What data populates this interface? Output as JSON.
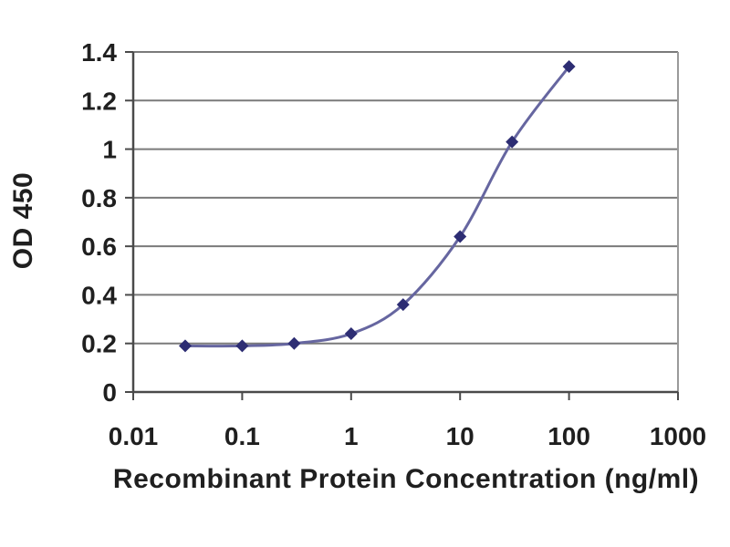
{
  "chart_data": {
    "type": "line",
    "title": "",
    "xlabel": "Recombinant Protein Concentration (ng/ml)",
    "ylabel": "OD 450",
    "x_scale": "log",
    "xlim": [
      0.01,
      1000
    ],
    "ylim": [
      0,
      1.4
    ],
    "x_tick_labels": [
      "0.01",
      "0.1",
      "1",
      "10",
      "100",
      "1000"
    ],
    "y_tick_labels": [
      "0",
      "0.2",
      "0.4",
      "0.6",
      "0.8",
      "1",
      "1.2",
      "1.4"
    ],
    "grid": "horizontal",
    "legend_position": "none",
    "series": [
      {
        "marker": "diamond",
        "smooth": true,
        "points": [
          {
            "x": 0.03,
            "y": 0.19
          },
          {
            "x": 0.1,
            "y": 0.19
          },
          {
            "x": 0.3,
            "y": 0.2
          },
          {
            "x": 1,
            "y": 0.24
          },
          {
            "x": 3,
            "y": 0.36
          },
          {
            "x": 10,
            "y": 0.64
          },
          {
            "x": 30,
            "y": 1.03
          },
          {
            "x": 100,
            "y": 1.34
          }
        ]
      }
    ],
    "colors": {
      "line": "#6666a0",
      "marker": "#2d2d73",
      "gridline": "#7a7a7a",
      "axis": "#4a4a4a",
      "plot_border_right": "#9a9a9a",
      "text": "#1f1f1f",
      "background": "#ffffff"
    }
  }
}
